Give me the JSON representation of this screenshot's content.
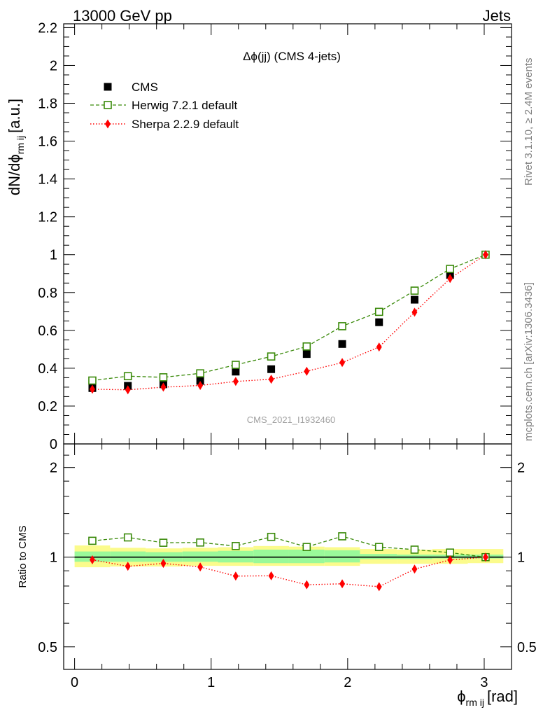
{
  "header": {
    "left": "13000 GeV pp",
    "right": "Jets"
  },
  "side_labels": {
    "top": "Rivet 3.1.10, ≥ 2.4M events",
    "bottom": "mcplots.cern.ch [arXiv:1306.3436]"
  },
  "watermark": "CMS_2021_I1932460",
  "chart_data": [
    {
      "panel": "main",
      "type": "scatter",
      "title": "Δϕ(jj) (CMS 4-jets)",
      "ylabel_main": "dN/dϕ",
      "ylabel_sub": "rm ij",
      "ylabel_unit": "[a.u.]",
      "xlim": [
        -0.08,
        3.2
      ],
      "ylim": [
        0,
        2.22
      ],
      "yticks": [
        0,
        0.2,
        0.4,
        0.6,
        0.8,
        1,
        1.2,
        1.4,
        1.6,
        1.8,
        2,
        2.2
      ],
      "ytick_labels": [
        "0",
        "0.2",
        "0.4",
        "0.6",
        "0.8",
        "1",
        "1.2",
        "1.4",
        "1.6",
        "1.8",
        "2",
        "2.2"
      ],
      "x": [
        0.13,
        0.39,
        0.65,
        0.92,
        1.18,
        1.44,
        1.7,
        1.96,
        2.23,
        2.49,
        2.75,
        3.01
      ],
      "series": [
        {
          "name": "CMS",
          "style": "data",
          "color": "#000000",
          "values": [
            0.295,
            0.307,
            0.315,
            0.333,
            0.382,
            0.395,
            0.475,
            0.528,
            0.643,
            0.762,
            0.893,
            1.0
          ]
        },
        {
          "name": "Herwig 7.2.1 default",
          "style": "open-square-dashed",
          "color": "#3a8a0a",
          "values": [
            0.335,
            0.358,
            0.352,
            0.373,
            0.418,
            0.462,
            0.515,
            0.622,
            0.698,
            0.81,
            0.925,
            1.0
          ]
        },
        {
          "name": "Sherpa 2.2.9 default",
          "style": "diamond-dotted",
          "color": "#ff0000",
          "values": [
            0.289,
            0.286,
            0.3,
            0.309,
            0.33,
            0.342,
            0.384,
            0.43,
            0.512,
            0.696,
            0.874,
            1.0
          ]
        }
      ],
      "legend_placement": "top-left"
    },
    {
      "panel": "ratio",
      "type": "line",
      "ylabel": "Ratio to CMS",
      "xlabel_main": "ϕ",
      "xlabel_sub": "rm ij",
      "xlabel_unit": "[rad]",
      "xlim": [
        -0.08,
        3.2
      ],
      "ylim": [
        0.42,
        2.4
      ],
      "log_scale_y": true,
      "yticks": [
        0.5,
        1,
        2
      ],
      "ytick_labels": [
        "0.5",
        "1",
        "2"
      ],
      "xticks": [
        0,
        1,
        2,
        3
      ],
      "xtick_labels": [
        "0",
        "1",
        "2",
        "3"
      ],
      "x": [
        0.13,
        0.39,
        0.65,
        0.92,
        1.18,
        1.44,
        1.7,
        1.96,
        2.23,
        2.49,
        2.75,
        3.01
      ],
      "bins": [
        [
          0.0,
          0.26
        ],
        [
          0.26,
          0.52
        ],
        [
          0.52,
          0.79
        ],
        [
          0.79,
          1.05
        ],
        [
          1.05,
          1.31
        ],
        [
          1.31,
          1.57
        ],
        [
          1.57,
          1.83
        ],
        [
          1.83,
          2.09
        ],
        [
          2.09,
          2.36
        ],
        [
          2.36,
          2.62
        ],
        [
          2.62,
          2.88
        ],
        [
          2.88,
          3.14
        ]
      ],
      "band_outer_lo": [
        0.925,
        0.93,
        0.93,
        0.935,
        0.935,
        0.935,
        0.935,
        0.935,
        0.95,
        0.95,
        0.95,
        0.955
      ],
      "band_outer_hi": [
        1.095,
        1.075,
        1.07,
        1.075,
        1.08,
        1.09,
        1.085,
        1.08,
        1.065,
        1.06,
        1.065,
        1.065
      ],
      "band_inner_lo": [
        0.965,
        0.965,
        0.965,
        0.965,
        0.96,
        0.955,
        0.955,
        0.96,
        0.985,
        0.985,
        0.99,
        0.99
      ],
      "band_inner_hi": [
        1.045,
        1.045,
        1.04,
        1.045,
        1.05,
        1.06,
        1.06,
        1.055,
        1.025,
        1.02,
        1.02,
        1.02
      ],
      "band_colors": {
        "outer": "#fbfb8c",
        "inner": "#9af99a"
      },
      "series": [
        {
          "name": "Herwig 7.2.1 default",
          "style": "open-square-dashed",
          "color": "#3a8a0a",
          "values": [
            1.135,
            1.165,
            1.118,
            1.12,
            1.09,
            1.17,
            1.082,
            1.175,
            1.082,
            1.06,
            1.036,
            1.0
          ]
        },
        {
          "name": "Sherpa 2.2.9 default",
          "style": "diamond-dotted",
          "color": "#ff0000",
          "values": [
            0.98,
            0.932,
            0.953,
            0.927,
            0.864,
            0.866,
            0.808,
            0.814,
            0.796,
            0.912,
            0.979,
            1.0
          ]
        }
      ]
    }
  ]
}
